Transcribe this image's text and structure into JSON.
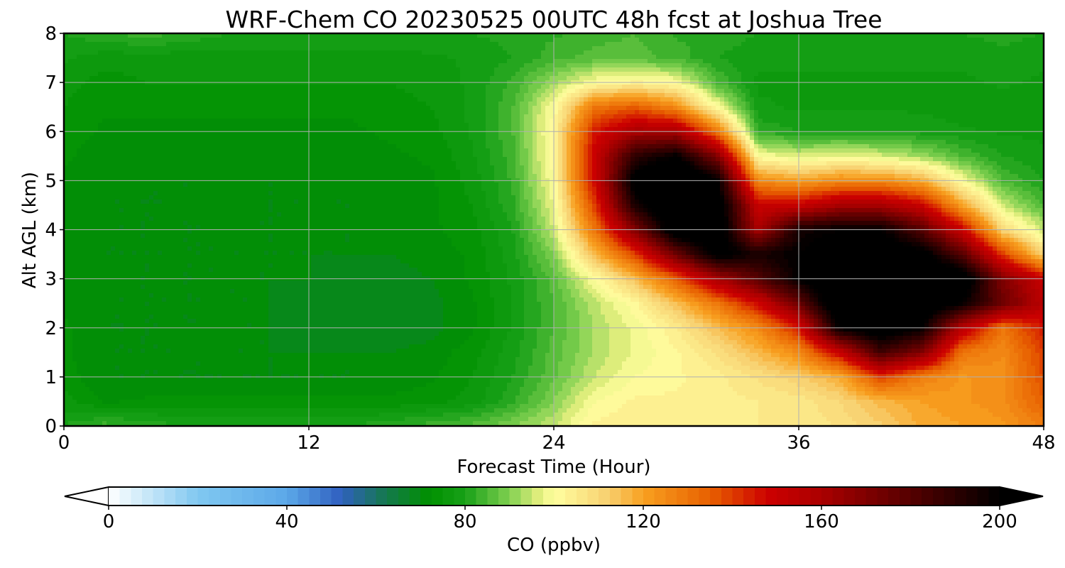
{
  "chart_data": {
    "type": "heatmap",
    "title": "WRF-Chem CO  20230525 00UTC 48h fcst at Joshua Tree",
    "xlabel": "Forecast Time (Hour)",
    "ylabel": "Alt AGL (km)",
    "xlim": [
      0,
      48
    ],
    "ylim": [
      0,
      8
    ],
    "x_ticks": [
      0,
      12,
      24,
      36,
      48
    ],
    "y_ticks": [
      0,
      1,
      2,
      3,
      4,
      5,
      6,
      7,
      8
    ],
    "grid": true,
    "colorbar": {
      "label": "CO  (ppbv)",
      "range": [
        0,
        200
      ],
      "ticks": [
        0,
        40,
        80,
        120,
        160,
        200
      ],
      "extend": "both",
      "orientation": "horizontal",
      "placement": "bottom",
      "levels_step": 2.5,
      "colors": {
        "0": "#ffffff",
        "20": "#80c8f0",
        "40": "#5ca8e8",
        "52": "#3060c0",
        "62": "#157850",
        "72": "#009000",
        "80": "#18a018",
        "90": "#80d050",
        "97": "#e8f080",
        "100": "#ffffa0",
        "112": "#f8d070",
        "120": "#f8a020",
        "135": "#e86000",
        "148": "#cc0000",
        "160": "#aa0000",
        "180": "#550000",
        "200": "#000000"
      }
    },
    "grid_data": {
      "x": [
        0,
        2,
        4,
        6,
        8,
        10,
        12,
        14,
        16,
        18,
        20,
        22,
        24,
        26,
        28,
        30,
        32,
        34,
        36,
        38,
        40,
        42,
        44,
        46,
        48
      ],
      "y": [
        0,
        0.5,
        1,
        1.5,
        2,
        2.5,
        3,
        3.5,
        4,
        4.5,
        5,
        5.5,
        6,
        6.5,
        7,
        7.5,
        8
      ],
      "z": [
        [
          80,
          84,
          82,
          80,
          80,
          80,
          80,
          80,
          82,
          84,
          86,
          90,
          95,
          103,
          105,
          105,
          105,
          105,
          105,
          108,
          112,
          118,
          120,
          122,
          128
        ],
        [
          76,
          72,
          73,
          73,
          73,
          73,
          73,
          73,
          73,
          74,
          76,
          82,
          90,
          100,
          103,
          103,
          104,
          105,
          106,
          110,
          116,
          120,
          122,
          124,
          135
        ],
        [
          74,
          70,
          70,
          70,
          70,
          70,
          70,
          70,
          71,
          72,
          75,
          80,
          87,
          95,
          100,
          102,
          104,
          108,
          112,
          118,
          140,
          128,
          122,
          124,
          138
        ],
        [
          73,
          70,
          70,
          70,
          70,
          70,
          70,
          70,
          70,
          71,
          74,
          79,
          86,
          93,
          98,
          102,
          108,
          116,
          125,
          150,
          185,
          170,
          130,
          125,
          140
        ],
        [
          73,
          70,
          70,
          70,
          70,
          70,
          69,
          68,
          68,
          69,
          72,
          78,
          85,
          93,
          98,
          105,
          115,
          125,
          145,
          200,
          210,
          200,
          155,
          130,
          145
        ],
        [
          72,
          70,
          70,
          70,
          70,
          70,
          69,
          68,
          68,
          69,
          72,
          78,
          85,
          94,
          102,
          115,
          130,
          148,
          175,
          215,
          215,
          210,
          200,
          175,
          155
        ],
        [
          72,
          70,
          70,
          70,
          70,
          70,
          70,
          69,
          69,
          70,
          73,
          78,
          86,
          100,
          115,
          135,
          160,
          180,
          200,
          215,
          215,
          215,
          210,
          170,
          150
        ],
        [
          72,
          70,
          70,
          70,
          70,
          70,
          70,
          70,
          70,
          71,
          73,
          79,
          90,
          115,
          140,
          175,
          205,
          195,
          200,
          210,
          210,
          205,
          180,
          140,
          110
        ],
        [
          72,
          70,
          70,
          70,
          70,
          70,
          70,
          70,
          71,
          72,
          74,
          80,
          95,
          130,
          170,
          210,
          210,
          160,
          195,
          200,
          200,
          180,
          150,
          110,
          95
        ],
        [
          72,
          70,
          70,
          70,
          70,
          70,
          70,
          70,
          71,
          72,
          75,
          82,
          98,
          140,
          195,
          215,
          210,
          150,
          150,
          160,
          160,
          150,
          120,
          95,
          85
        ],
        [
          72,
          70,
          70,
          70,
          70,
          70,
          70,
          70,
          71,
          72,
          76,
          83,
          100,
          148,
          205,
          220,
          200,
          125,
          120,
          125,
          125,
          118,
          100,
          85,
          80
        ],
        [
          73,
          71,
          71,
          71,
          71,
          71,
          71,
          71,
          72,
          73,
          77,
          84,
          102,
          150,
          190,
          200,
          170,
          100,
          96,
          98,
          96,
          92,
          85,
          80,
          78
        ],
        [
          74,
          72,
          72,
          72,
          72,
          72,
          72,
          72,
          73,
          74,
          78,
          85,
          102,
          145,
          160,
          160,
          130,
          82,
          80,
          80,
          80,
          79,
          78,
          77,
          77
        ],
        [
          75,
          73,
          73,
          73,
          73,
          73,
          73,
          73,
          74,
          75,
          78,
          85,
          100,
          130,
          135,
          125,
          100,
          78,
          77,
          77,
          77,
          77,
          76,
          76,
          76
        ],
        [
          76,
          74,
          75,
          75,
          75,
          75,
          75,
          75,
          75,
          76,
          78,
          83,
          92,
          100,
          103,
          100,
          85,
          77,
          77,
          77,
          77,
          77,
          77,
          78,
          77
        ],
        [
          78,
          76,
          76,
          76,
          76,
          76,
          76,
          76,
          76,
          77,
          78,
          80,
          84,
          86,
          86,
          84,
          80,
          78,
          78,
          78,
          78,
          78,
          78,
          79,
          78
        ],
        [
          80,
          82,
          84,
          82,
          80,
          80,
          80,
          80,
          80,
          80,
          80,
          81,
          82,
          84,
          85,
          82,
          82,
          80,
          80,
          80,
          80,
          80,
          80,
          81,
          80
        ]
      ]
    }
  }
}
